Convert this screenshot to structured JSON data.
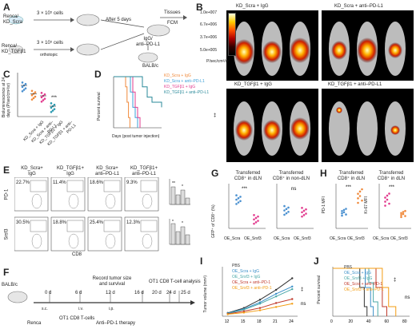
{
  "panels": {
    "A": {
      "label": "A",
      "cell1": "Renca/\nKD_Scra",
      "cell2": "Renca/\nKD_TGFβ1",
      "dose1": "3 × 10⁵ cells",
      "dose2": "3 × 10⁵ cells",
      "route": "orthotopic",
      "days": "After 5 days",
      "treatment": "IgG/\nanti–PD-L1",
      "tissues": "Tissues",
      "fcm": "FCM",
      "mouse": "BALB/c"
    },
    "B": {
      "label": "B",
      "titles": [
        "KD_Scra + IgG",
        "KD_Scra + anti–PD-L1",
        "KD_TGFβ1 + IgG",
        "KD_TGFβ1 + anti–PD-L1"
      ],
      "scale_ticks": [
        "1.0e+007",
        "6.7e+006",
        "3.7e+006",
        "5.0e+005"
      ],
      "scale_unit": "P/sec/cm²/sr"
    },
    "C": {
      "label": "C",
      "ylabel": "Bioluminescence at 24 days (P/sec/cm²/sr)",
      "categories": [
        "KD_Scra + IgG",
        "KD_Scra + anti–PD-L1",
        "KD_TGFβ1 + IgG",
        "KD_TGFβ1 + anti–PD-L1"
      ],
      "sig": "***"
    },
    "D": {
      "label": "D",
      "ylabel": "Percent survival",
      "xlabel": "Days (post tumor injection)",
      "legend": [
        "KD_Scra + IgG",
        "KD_Scra + anti–PD-L1",
        "KD_TGFβ1 + IgG",
        "KD_TGFβ1 + anti–PD-L1"
      ],
      "sig": "‡"
    },
    "E": {
      "label": "E",
      "cols": [
        "KD_Scra+\nIgG",
        "KD_TGFβ1+\nIgG",
        "KD_Scra+\nanti–PD-L1",
        "KD_TGFβ1+\nanti–PD-L1"
      ],
      "row1": "PD-1",
      "row2": "Srsf3",
      "xaxis": "CD8",
      "pct_pd1": [
        "22.7%",
        "11.4%",
        "18.6%",
        "9.3%"
      ],
      "pct_srsf3": [
        "30.5%",
        "18.8%",
        "25.4%",
        "12.3%"
      ],
      "nums_top": [
        "①",
        "②",
        "③",
        "④"
      ],
      "nums_bot": [
        "⑤",
        "⑥",
        "⑦",
        "⑧"
      ],
      "bar_y1": "PD-1+CD8+ (%)",
      "bar_y2": "Srsf3+CD8+ (%)",
      "sig": [
        "**",
        "*"
      ]
    },
    "F": {
      "label": "F",
      "mouse": "BALB/c",
      "days": [
        "0 d",
        "6 d",
        "12 d",
        "16 d",
        "20 d",
        "24 d",
        "25 d"
      ],
      "sc": "s.c.",
      "iv": "i.v.",
      "ip": "i.p.",
      "top1": "Record tumor size\nand survival",
      "top2": "OT1 CD8 T-cell analysis",
      "bot1": "Renca",
      "bot2": "OT1 CD8 T-cells",
      "bot3": "Anti–PD-1 therapy"
    },
    "G": {
      "label": "G",
      "t1": "Transferred\nCD8⁺ in dLN",
      "t2": "Transferred\nCD8⁺ in non-dLN",
      "ylabel": "GFP⁺ of CD8⁺ (%)",
      "cats": [
        "OE_Scra",
        "OE_Srsf3"
      ],
      "sig1": "***",
      "sig2": "ns"
    },
    "H": {
      "label": "H",
      "t1": "Transferred\nCD8⁺ in dLN",
      "t2": "Transferred\nCD8⁺ in dLN",
      "y1": "PD-1 MFI",
      "y2": "Ki-67 MFI",
      "cats": [
        "OE_Scra",
        "OE_Srsf3"
      ],
      "sig1": "***",
      "sig2": "***"
    },
    "I": {
      "label": "I",
      "ylabel": "Tumor volume (mm³)",
      "legend": [
        "PBS",
        "OE_Scra + IgG",
        "OE_Srsf3 + IgG",
        "OE_Scra + anti–PD-1",
        "OE_Srsf3 + anti–PD-1"
      ],
      "sig": [
        "‡",
        "ns"
      ]
    },
    "J": {
      "label": "J",
      "ylabel": "Percent survival",
      "legend": [
        "PBS",
        "OE_Scra + IgG",
        "OE_Srsf3 + IgG",
        "OE_Scra + anti–PD-1",
        "OE_Srsf3 + anti–PD-1"
      ],
      "sig": [
        "‡",
        "ns"
      ]
    }
  },
  "chart_data": [
    {
      "type": "line",
      "id": "D",
      "title": "",
      "xlabel": "Days (post tumor injection)",
      "ylabel": "Percent survival",
      "xlim": [
        0,
        100
      ],
      "ylim": [
        0,
        100
      ],
      "x_ticks": [
        0,
        50,
        100
      ],
      "y_ticks": [
        0,
        50,
        100
      ],
      "series": [
        {
          "name": "KD_Scra + IgG",
          "color": "#f08a3c",
          "points": [
            [
              0,
              100
            ],
            [
              22,
              100
            ],
            [
              25,
              80
            ],
            [
              28,
              50
            ],
            [
              31,
              20
            ],
            [
              34,
              0
            ]
          ]
        },
        {
          "name": "KD_Scra + anti–PD-L1",
          "color": "#3aa0d8",
          "points": [
            [
              0,
              100
            ],
            [
              30,
              100
            ],
            [
              35,
              70
            ],
            [
              40,
              40
            ],
            [
              45,
              20
            ],
            [
              50,
              0
            ]
          ]
        },
        {
          "name": "KD_TGFβ1 + IgG",
          "color": "#e23b8e",
          "points": [
            [
              0,
              100
            ],
            [
              35,
              100
            ],
            [
              40,
              70
            ],
            [
              45,
              40
            ],
            [
              50,
              20
            ],
            [
              55,
              0
            ]
          ]
        },
        {
          "name": "KD_TGFβ1 + anti–PD-L1",
          "color": "#2a8a9a",
          "points": [
            [
              0,
              100
            ],
            [
              50,
              100
            ],
            [
              60,
              80
            ],
            [
              70,
              60
            ],
            [
              80,
              50
            ],
            [
              100,
              40
            ]
          ]
        }
      ]
    },
    {
      "type": "line",
      "id": "I",
      "xlabel": "",
      "ylabel": "Tumor volume (mm³)",
      "xlim": [
        11,
        25
      ],
      "ylim": [
        0,
        1500
      ],
      "x_ticks": [
        12,
        15,
        18,
        21,
        24
      ],
      "y_ticks": [
        0,
        500,
        1000,
        1500
      ],
      "series": [
        {
          "name": "PBS",
          "color": "#333333",
          "points": [
            [
              12,
              100
            ],
            [
              15,
              250
            ],
            [
              18,
              500
            ],
            [
              21,
              800
            ],
            [
              24,
              1150
            ]
          ]
        },
        {
          "name": "OE_Scra + IgG",
          "color": "#3a8fc8",
          "points": [
            [
              12,
              90
            ],
            [
              15,
              220
            ],
            [
              18,
              420
            ],
            [
              21,
              680
            ],
            [
              24,
              900
            ]
          ]
        },
        {
          "name": "OE_Srsf3 + IgG",
          "color": "#4aa8a8",
          "points": [
            [
              12,
              80
            ],
            [
              15,
              200
            ],
            [
              18,
              380
            ],
            [
              21,
              600
            ],
            [
              24,
              820
            ]
          ]
        },
        {
          "name": "OE_Scra + anti–PD-1",
          "color": "#c0392b",
          "points": [
            [
              12,
              70
            ],
            [
              15,
              150
            ],
            [
              18,
              250
            ],
            [
              21,
              400
            ],
            [
              24,
              520
            ]
          ]
        },
        {
          "name": "OE_Srsf3 + anti–PD-1",
          "color": "#f39c12",
          "points": [
            [
              12,
              60
            ],
            [
              15,
              110
            ],
            [
              18,
              180
            ],
            [
              21,
              280
            ],
            [
              24,
              380
            ]
          ]
        }
      ]
    },
    {
      "type": "line",
      "id": "J",
      "xlabel": "",
      "ylabel": "Percent survival",
      "xlim": [
        0,
        80
      ],
      "ylim": [
        0,
        100
      ],
      "x_ticks": [
        0,
        20,
        40,
        60,
        80
      ],
      "y_ticks": [
        0,
        50,
        100
      ],
      "series": [
        {
          "name": "PBS",
          "color": "#333333",
          "points": [
            [
              0,
              100
            ],
            [
              25,
              100
            ],
            [
              30,
              60
            ],
            [
              35,
              20
            ],
            [
              38,
              0
            ]
          ]
        },
        {
          "name": "OE_Scra + IgG",
          "color": "#3a8fc8",
          "points": [
            [
              0,
              100
            ],
            [
              30,
              100
            ],
            [
              36,
              60
            ],
            [
              42,
              20
            ],
            [
              45,
              0
            ]
          ]
        },
        {
          "name": "OE_Srsf3 + IgG",
          "color": "#4aa8a8",
          "points": [
            [
              0,
              100
            ],
            [
              34,
              100
            ],
            [
              40,
              70
            ],
            [
              45,
              30
            ],
            [
              50,
              0
            ]
          ]
        },
        {
          "name": "OE_Scra + anti–PD-1",
          "color": "#c0392b",
          "points": [
            [
              0,
              100
            ],
            [
              40,
              100
            ],
            [
              48,
              60
            ],
            [
              55,
              20
            ],
            [
              60,
              0
            ]
          ]
        },
        {
          "name": "OE_Srsf3 + anti–PD-1",
          "color": "#f39c12",
          "points": [
            [
              0,
              100
            ],
            [
              45,
              100
            ],
            [
              55,
              60
            ],
            [
              62,
              20
            ],
            [
              70,
              0
            ]
          ]
        }
      ]
    },
    {
      "type": "scatter",
      "id": "C",
      "categories": [
        "KD_Scra + IgG",
        "KD_Scra + anti–PD-L1",
        "KD_TGFβ1 + IgG",
        "KD_TGFβ1 + anti–PD-L1"
      ],
      "ylim": [
        0,
        10
      ],
      "colors": [
        "#4a90d0",
        "#f08a3c",
        "#e23b8e",
        "#2a9ab0"
      ],
      "means": [
        7.5,
        5.5,
        5.0,
        2.5
      ]
    },
    {
      "type": "scatter",
      "id": "G",
      "categories": [
        "OE_Scra",
        "OE_Srsf3"
      ],
      "means_dLN": [
        0.8,
        0.25
      ],
      "means_nondLN": [
        0.5,
        0.45
      ],
      "ylim": [
        0,
        1.2
      ]
    },
    {
      "type": "scatter",
      "id": "H",
      "categories": [
        "OE_Scra",
        "OE_Srsf3"
      ],
      "pd1_means": [
        3000,
        6000
      ],
      "ki67_means": [
        600,
        300
      ]
    }
  ]
}
